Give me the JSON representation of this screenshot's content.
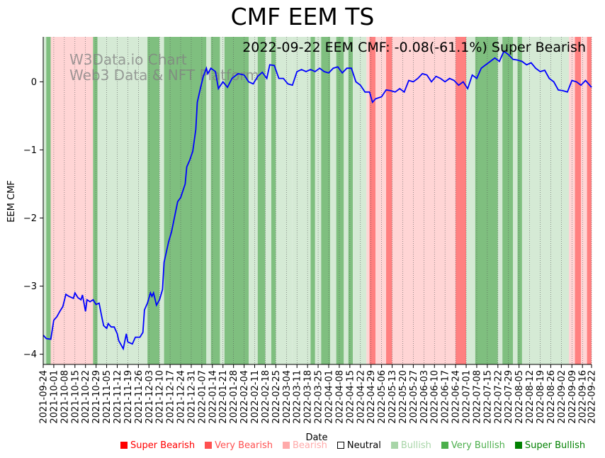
{
  "chart_data": {
    "type": "line",
    "title": "CMF EEM TS",
    "subtitle": "2022-09-22 EEM CMF: -0.08(-61.1%) Super Bearish",
    "watermark": [
      "W3Data.io Chart",
      "Web3 Data & NFT Platform"
    ],
    "xlabel": "Date",
    "ylabel": "EEM CMF",
    "xlim": [
      "2021-09-24",
      "2022-09-22"
    ],
    "ylim": [
      -4.15,
      0.66
    ],
    "yticks": [
      -4,
      -3,
      -2,
      -1,
      0
    ],
    "xticks": [
      "2021-09-24",
      "2021-10-01",
      "2021-10-08",
      "2021-10-15",
      "2021-10-22",
      "2021-10-29",
      "2021-11-05",
      "2021-11-12",
      "2021-11-19",
      "2021-11-26",
      "2021-12-03",
      "2021-12-10",
      "2021-12-17",
      "2021-12-24",
      "2021-12-31",
      "2022-01-07",
      "2022-01-14",
      "2022-01-21",
      "2022-01-28",
      "2022-02-04",
      "2022-02-11",
      "2022-02-18",
      "2022-02-25",
      "2022-03-04",
      "2022-03-11",
      "2022-03-18",
      "2022-03-25",
      "2022-04-01",
      "2022-04-08",
      "2022-04-15",
      "2022-04-22",
      "2022-04-29",
      "2022-05-06",
      "2022-05-13",
      "2022-05-20",
      "2022-05-27",
      "2022-06-03",
      "2022-06-10",
      "2022-06-17",
      "2022-06-24",
      "2022-07-01",
      "2022-07-08",
      "2022-07-15",
      "2022-07-22",
      "2022-07-29",
      "2022-08-05",
      "2022-08-12",
      "2022-08-19",
      "2022-08-26",
      "2022-09-02",
      "2022-09-09",
      "2022-09-16",
      "2022-09-22"
    ],
    "series": [
      {
        "name": "EEM CMF",
        "color": "#0000ff",
        "points": [
          [
            "2021-09-24",
            -3.72
          ],
          [
            "2021-09-26",
            -3.77
          ],
          [
            "2021-09-29",
            -3.78
          ],
          [
            "2021-10-01",
            -3.5
          ],
          [
            "2021-10-03",
            -3.45
          ],
          [
            "2021-10-05",
            -3.37
          ],
          [
            "2021-10-07",
            -3.3
          ],
          [
            "2021-10-09",
            -3.12
          ],
          [
            "2021-10-11",
            -3.15
          ],
          [
            "2021-10-14",
            -3.18
          ],
          [
            "2021-10-15",
            -3.1
          ],
          [
            "2021-10-17",
            -3.17
          ],
          [
            "2021-10-19",
            -3.2
          ],
          [
            "2021-10-20",
            -3.13
          ],
          [
            "2021-10-22",
            -3.37
          ],
          [
            "2021-10-23",
            -3.2
          ],
          [
            "2021-10-25",
            -3.23
          ],
          [
            "2021-10-27",
            -3.2
          ],
          [
            "2021-10-29",
            -3.27
          ],
          [
            "2021-10-31",
            -3.25
          ],
          [
            "2021-11-02",
            -3.48
          ],
          [
            "2021-11-03",
            -3.58
          ],
          [
            "2021-11-05",
            -3.62
          ],
          [
            "2021-11-06",
            -3.55
          ],
          [
            "2021-11-08",
            -3.6
          ],
          [
            "2021-11-10",
            -3.6
          ],
          [
            "2021-11-12",
            -3.7
          ],
          [
            "2021-11-13",
            -3.8
          ],
          [
            "2021-11-16",
            -3.92
          ],
          [
            "2021-11-18",
            -3.7
          ],
          [
            "2021-11-19",
            -3.82
          ],
          [
            "2021-11-22",
            -3.85
          ],
          [
            "2021-11-24",
            -3.75
          ],
          [
            "2021-11-27",
            -3.75
          ],
          [
            "2021-11-29",
            -3.68
          ],
          [
            "2021-11-30",
            -3.35
          ],
          [
            "2021-12-02",
            -3.25
          ],
          [
            "2021-12-04",
            -3.1
          ],
          [
            "2021-12-05",
            -3.15
          ],
          [
            "2021-12-06",
            -3.1
          ],
          [
            "2021-12-08",
            -3.28
          ],
          [
            "2021-12-10",
            -3.2
          ],
          [
            "2021-12-12",
            -3.05
          ],
          [
            "2021-12-13",
            -2.65
          ],
          [
            "2021-12-16",
            -2.35
          ],
          [
            "2021-12-18",
            -2.2
          ],
          [
            "2021-12-20",
            -1.98
          ],
          [
            "2021-12-22",
            -1.76
          ],
          [
            "2021-12-24",
            -1.7
          ],
          [
            "2021-12-27",
            -1.5
          ],
          [
            "2021-12-28",
            -1.25
          ],
          [
            "2021-12-30",
            -1.15
          ],
          [
            "2022-01-01",
            -1.02
          ],
          [
            "2022-01-03",
            -0.7
          ],
          [
            "2022-01-04",
            -0.3
          ],
          [
            "2022-01-06",
            -0.1
          ],
          [
            "2022-01-08",
            0.08
          ],
          [
            "2022-01-10",
            0.2
          ],
          [
            "2022-01-11",
            0.12
          ],
          [
            "2022-01-13",
            0.2
          ],
          [
            "2022-01-16",
            0.15
          ],
          [
            "2022-01-18",
            -0.1
          ],
          [
            "2022-01-21",
            0.0
          ],
          [
            "2022-01-24",
            -0.08
          ],
          [
            "2022-01-27",
            0.05
          ],
          [
            "2022-01-31",
            0.12
          ],
          [
            "2022-02-04",
            0.1
          ],
          [
            "2022-02-07",
            0.0
          ],
          [
            "2022-02-10",
            -0.03
          ],
          [
            "2022-02-13",
            0.08
          ],
          [
            "2022-02-16",
            0.14
          ],
          [
            "2022-02-19",
            0.05
          ],
          [
            "2022-02-21",
            0.25
          ],
          [
            "2022-02-24",
            0.24
          ],
          [
            "2022-02-27",
            0.05
          ],
          [
            "2022-03-02",
            0.05
          ],
          [
            "2022-03-05",
            -0.03
          ],
          [
            "2022-03-08",
            -0.05
          ],
          [
            "2022-03-11",
            0.15
          ],
          [
            "2022-03-14",
            0.18
          ],
          [
            "2022-03-17",
            0.15
          ],
          [
            "2022-03-20",
            0.18
          ],
          [
            "2022-03-23",
            0.15
          ],
          [
            "2022-03-26",
            0.2
          ],
          [
            "2022-03-29",
            0.15
          ],
          [
            "2022-04-01",
            0.13
          ],
          [
            "2022-04-04",
            0.2
          ],
          [
            "2022-04-07",
            0.22
          ],
          [
            "2022-04-10",
            0.13
          ],
          [
            "2022-04-13",
            0.2
          ],
          [
            "2022-04-16",
            0.2
          ],
          [
            "2022-04-19",
            0.0
          ],
          [
            "2022-04-22",
            -0.05
          ],
          [
            "2022-04-25",
            -0.15
          ],
          [
            "2022-04-28",
            -0.15
          ],
          [
            "2022-04-30",
            -0.3
          ],
          [
            "2022-05-02",
            -0.25
          ],
          [
            "2022-05-06",
            -0.22
          ],
          [
            "2022-05-09",
            -0.12
          ],
          [
            "2022-05-12",
            -0.13
          ],
          [
            "2022-05-15",
            -0.15
          ],
          [
            "2022-05-18",
            -0.1
          ],
          [
            "2022-05-21",
            -0.15
          ],
          [
            "2022-05-24",
            0.02
          ],
          [
            "2022-05-27",
            0.0
          ],
          [
            "2022-05-30",
            0.05
          ],
          [
            "2022-06-02",
            0.12
          ],
          [
            "2022-06-05",
            0.1
          ],
          [
            "2022-06-08",
            0.0
          ],
          [
            "2022-06-11",
            0.08
          ],
          [
            "2022-06-14",
            0.05
          ],
          [
            "2022-06-17",
            0.0
          ],
          [
            "2022-06-20",
            0.05
          ],
          [
            "2022-06-23",
            0.02
          ],
          [
            "2022-06-26",
            -0.05
          ],
          [
            "2022-06-29",
            0.0
          ],
          [
            "2022-07-02",
            -0.1
          ],
          [
            "2022-07-05",
            0.1
          ],
          [
            "2022-07-08",
            0.05
          ],
          [
            "2022-07-11",
            0.2
          ],
          [
            "2022-07-14",
            0.25
          ],
          [
            "2022-07-17",
            0.3
          ],
          [
            "2022-07-20",
            0.35
          ],
          [
            "2022-07-23",
            0.3
          ],
          [
            "2022-07-26",
            0.45
          ],
          [
            "2022-07-29",
            0.4
          ],
          [
            "2022-08-01",
            0.33
          ],
          [
            "2022-08-04",
            0.32
          ],
          [
            "2022-08-07",
            0.3
          ],
          [
            "2022-08-10",
            0.25
          ],
          [
            "2022-08-13",
            0.28
          ],
          [
            "2022-08-16",
            0.2
          ],
          [
            "2022-08-19",
            0.15
          ],
          [
            "2022-08-22",
            0.17
          ],
          [
            "2022-08-25",
            0.05
          ],
          [
            "2022-08-28",
            0.0
          ],
          [
            "2022-08-31",
            -0.12
          ],
          [
            "2022-09-03",
            -0.13
          ],
          [
            "2022-09-06",
            -0.15
          ],
          [
            "2022-09-09",
            0.02
          ],
          [
            "2022-09-12",
            0.0
          ],
          [
            "2022-09-15",
            -0.05
          ],
          [
            "2022-09-18",
            0.02
          ],
          [
            "2022-09-22",
            -0.08
          ]
        ]
      }
    ],
    "regions": [
      [
        "2021-09-24",
        "2021-09-26",
        "bullish"
      ],
      [
        "2021-09-26",
        "2021-09-29",
        "very_bullish"
      ],
      [
        "2021-09-29",
        "2021-10-27",
        "bearish"
      ],
      [
        "2021-10-27",
        "2021-10-30",
        "very_bullish"
      ],
      [
        "2021-10-30",
        "2021-12-02",
        "bullish"
      ],
      [
        "2021-12-02",
        "2021-12-10",
        "very_bullish"
      ],
      [
        "2021-12-10",
        "2021-12-13",
        "bullish"
      ],
      [
        "2021-12-13",
        "2022-01-10",
        "very_bullish"
      ],
      [
        "2022-01-10",
        "2022-01-13",
        "bullish"
      ],
      [
        "2022-01-13",
        "2022-01-19",
        "very_bullish"
      ],
      [
        "2022-01-19",
        "2022-01-22",
        "bullish"
      ],
      [
        "2022-01-22",
        "2022-02-07",
        "very_bullish"
      ],
      [
        "2022-02-07",
        "2022-02-13",
        "bullish"
      ],
      [
        "2022-02-13",
        "2022-02-18",
        "very_bullish"
      ],
      [
        "2022-02-18",
        "2022-02-22",
        "bullish"
      ],
      [
        "2022-02-22",
        "2022-02-25",
        "very_bullish"
      ],
      [
        "2022-02-25",
        "2022-03-08",
        "bullish"
      ],
      [
        "2022-03-08",
        "2022-03-20",
        "bullish"
      ],
      [
        "2022-03-20",
        "2022-03-23",
        "very_bullish"
      ],
      [
        "2022-03-23",
        "2022-03-27",
        "bullish"
      ],
      [
        "2022-03-27",
        "2022-04-02",
        "very_bullish"
      ],
      [
        "2022-04-02",
        "2022-04-06",
        "bullish"
      ],
      [
        "2022-04-06",
        "2022-04-11",
        "very_bullish"
      ],
      [
        "2022-04-11",
        "2022-04-14",
        "bullish"
      ],
      [
        "2022-04-14",
        "2022-04-17",
        "very_bullish"
      ],
      [
        "2022-04-17",
        "2022-04-26",
        "bullish"
      ],
      [
        "2022-04-26",
        "2022-04-28",
        "bearish"
      ],
      [
        "2022-04-28",
        "2022-05-02",
        "very_bearish"
      ],
      [
        "2022-05-02",
        "2022-05-09",
        "bearish"
      ],
      [
        "2022-05-09",
        "2022-05-13",
        "very_bearish"
      ],
      [
        "2022-05-13",
        "2022-06-24",
        "bearish"
      ],
      [
        "2022-06-24",
        "2022-07-01",
        "very_bearish"
      ],
      [
        "2022-07-01",
        "2022-07-07",
        "bullish"
      ],
      [
        "2022-07-07",
        "2022-07-22",
        "very_bullish"
      ],
      [
        "2022-07-22",
        "2022-07-25",
        "bullish"
      ],
      [
        "2022-07-25",
        "2022-08-01",
        "very_bullish"
      ],
      [
        "2022-08-01",
        "2022-08-04",
        "bullish"
      ],
      [
        "2022-08-04",
        "2022-08-07",
        "very_bullish"
      ],
      [
        "2022-08-07",
        "2022-09-07",
        "bullish"
      ],
      [
        "2022-09-07",
        "2022-09-11",
        "bearish"
      ],
      [
        "2022-09-11",
        "2022-09-15",
        "very_bearish"
      ],
      [
        "2022-09-15",
        "2022-09-19",
        "bearish"
      ],
      [
        "2022-09-19",
        "2022-09-22",
        "very_bearish"
      ]
    ],
    "region_colors": {
      "very_bullish": "#7fbf7f",
      "bullish": "#d5ead5",
      "bearish": "#ffd5d5",
      "very_bearish": "#ff8080"
    },
    "legend": [
      {
        "label": "Super Bearish",
        "color": "#ff0000",
        "filled": true
      },
      {
        "label": "Very Bearish",
        "color": "#ff5050",
        "filled": true
      },
      {
        "label": "Bearish",
        "color": "#ffaaaa",
        "filled": true
      },
      {
        "label": "Neutral",
        "color": "#000000",
        "filled": false
      },
      {
        "label": "Bullish",
        "color": "#a8d5a8",
        "filled": true
      },
      {
        "label": "Very Bullish",
        "color": "#4caf4c",
        "filled": true
      },
      {
        "label": "Super Bullish",
        "color": "#008000",
        "filled": true
      }
    ]
  }
}
